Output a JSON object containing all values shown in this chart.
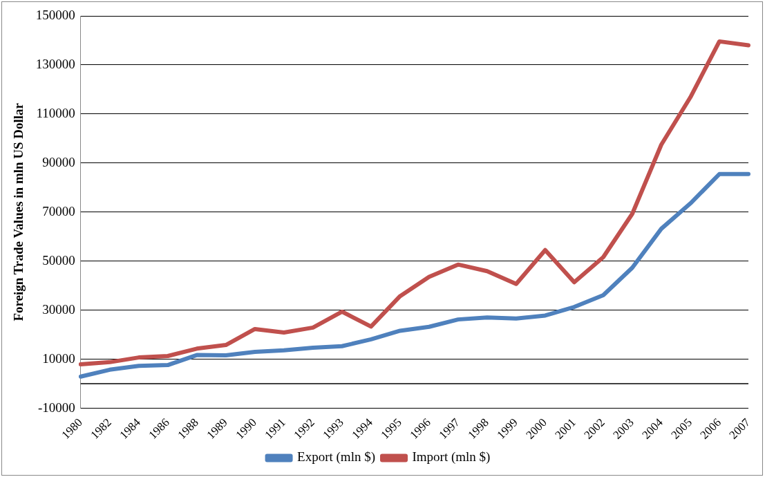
{
  "chart_data": {
    "type": "line",
    "ylabel": "Foreign Trade Values in mln US Dollar",
    "categories": [
      "1980",
      "1982",
      "1984",
      "1986",
      "1988",
      "1989",
      "1990",
      "1991",
      "1992",
      "1993",
      "1994",
      "1995",
      "1996",
      "1997",
      "1998",
      "1999",
      "2000",
      "2001",
      "2002",
      "2003",
      "2004",
      "2005",
      "2006",
      "2007"
    ],
    "series": [
      {
        "name": "Export (mln $)",
        "color": "#4f81bd",
        "values": [
          2900,
          5700,
          7300,
          7600,
          11700,
          11600,
          13000,
          13600,
          14700,
          15300,
          18100,
          21600,
          23200,
          26200,
          27000,
          26600,
          27800,
          31300,
          36100,
          47300,
          63200,
          73500,
          85500,
          85500
        ]
      },
      {
        "name": "Import (mln $)",
        "color": "#c0504d",
        "values": [
          7900,
          8800,
          10700,
          11300,
          14300,
          15800,
          22300,
          20900,
          22900,
          29400,
          23300,
          35700,
          43600,
          48600,
          45900,
          40700,
          54500,
          41400,
          51600,
          69300,
          97500,
          116800,
          139600,
          138000
        ]
      }
    ],
    "ylim": [
      -10000,
      150000
    ],
    "yticks": [
      -10000,
      10000,
      30000,
      50000,
      70000,
      90000,
      110000,
      130000,
      150000
    ],
    "ref_lines": [
      {
        "axis": "y",
        "value": 0,
        "color": "#000000"
      }
    ],
    "grid": "y",
    "legend": "bottom",
    "marker": "none",
    "line_style": "solid"
  }
}
